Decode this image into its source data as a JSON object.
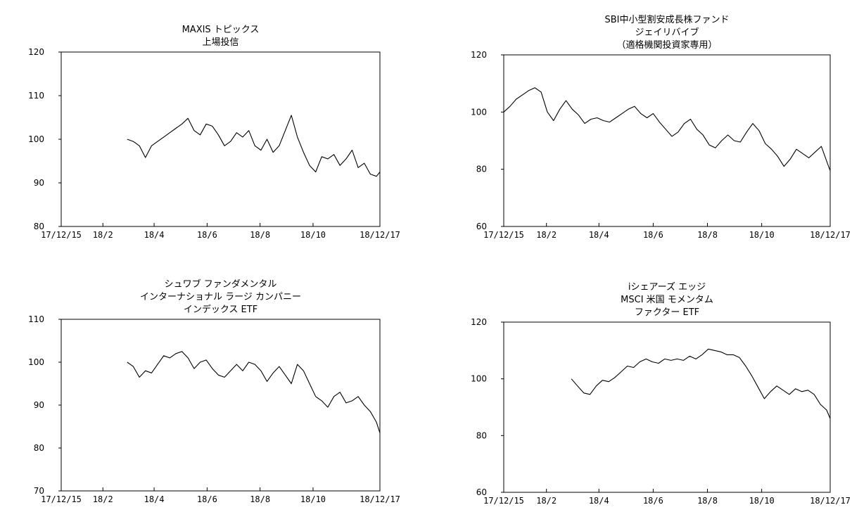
{
  "chart_data": [
    {
      "type": "line",
      "title_lines": [
        "MAXIS トピックス",
        "上場投信"
      ],
      "ylim": [
        80,
        120
      ],
      "yticks": [
        "80",
        "90",
        "100",
        "110",
        "120"
      ],
      "xticks": [
        "17/12/15",
        "18/2",
        "18/4",
        "18/6",
        "18/8",
        "18/10",
        "18/12/17"
      ],
      "x": [
        "18/3/1",
        "18/3/8",
        "18/3/15",
        "18/3/22",
        "18/3/29",
        "18/4/5",
        "18/4/12",
        "18/4/19",
        "18/4/26",
        "18/5/3",
        "18/5/10",
        "18/5/17",
        "18/5/24",
        "18/5/31",
        "18/6/7",
        "18/6/14",
        "18/6/21",
        "18/6/28",
        "18/7/5",
        "18/7/12",
        "18/7/19",
        "18/7/26",
        "18/8/2",
        "18/8/9",
        "18/8/16",
        "18/8/23",
        "18/8/30",
        "18/9/6",
        "18/9/13",
        "18/9/20",
        "18/9/27",
        "18/10/4",
        "18/10/11",
        "18/10/18",
        "18/10/25",
        "18/11/1",
        "18/11/8",
        "18/11/15",
        "18/11/22",
        "18/11/29",
        "18/12/6",
        "18/12/13",
        "18/12/17"
      ],
      "series": [
        {
          "values": [
            100,
            99.5,
            98.5,
            95.8,
            98.5,
            99.5,
            100.5,
            101.5,
            102.5,
            103.5,
            104.8,
            102,
            101,
            103.5,
            103,
            101,
            98.5,
            99.5,
            101.5,
            100.5,
            102,
            98.5,
            97.5,
            100,
            97,
            98.5,
            102,
            105.5,
            100.5,
            97,
            94,
            92.5,
            96,
            95.5,
            96.5,
            94,
            95.5,
            97.5,
            93.5,
            94.5,
            92,
            91.5,
            92.5
          ]
        }
      ]
    },
    {
      "type": "line",
      "title_lines": [
        "SBI中小型割安成長株ファンド",
        "ジェイリバイブ",
        "（適格機関投資家専用）"
      ],
      "ylim": [
        60,
        120
      ],
      "yticks": [
        "60",
        "80",
        "100",
        "120"
      ],
      "xticks": [
        "17/12/15",
        "18/2",
        "18/4",
        "18/6",
        "18/8",
        "18/10",
        "18/12/17"
      ],
      "x": [
        "17/12/15",
        "17/12/22",
        "17/12/29",
        "18/1/5",
        "18/1/12",
        "18/1/19",
        "18/1/26",
        "18/2/2",
        "18/2/9",
        "18/2/16",
        "18/2/23",
        "18/3/2",
        "18/3/9",
        "18/3/16",
        "18/3/23",
        "18/3/30",
        "18/4/6",
        "18/4/13",
        "18/4/20",
        "18/4/27",
        "18/5/4",
        "18/5/11",
        "18/5/18",
        "18/5/25",
        "18/6/1",
        "18/6/8",
        "18/6/15",
        "18/6/22",
        "18/6/29",
        "18/7/6",
        "18/7/13",
        "18/7/20",
        "18/7/27",
        "18/8/3",
        "18/8/10",
        "18/8/17",
        "18/8/24",
        "18/8/31",
        "18/9/7",
        "18/9/14",
        "18/9/21",
        "18/9/28",
        "18/10/5",
        "18/10/12",
        "18/10/19",
        "18/10/26",
        "18/11/2",
        "18/11/9",
        "18/11/16",
        "18/11/23",
        "18/11/30",
        "18/12/7",
        "18/12/14",
        "18/12/17"
      ],
      "series": [
        {
          "values": [
            100,
            102,
            104.5,
            106,
            107.5,
            108.5,
            107,
            100,
            97,
            101,
            104,
            101,
            99,
            96,
            97.5,
            98,
            97,
            96.5,
            98,
            99.5,
            101,
            102,
            99.5,
            98,
            99.5,
            96.5,
            94,
            91.5,
            93,
            96,
            97.5,
            94,
            92,
            88.5,
            87.5,
            90,
            92,
            90,
            89.5,
            93,
            96,
            93.5,
            89,
            87,
            84.5,
            81,
            83.5,
            87,
            85.5,
            84,
            86,
            88,
            82,
            79.5
          ]
        }
      ]
    },
    {
      "type": "line",
      "title_lines": [
        "シュワブ ファンダメンタル",
        "インターナショナル ラージ カンパニー",
        "インデックス ETF"
      ],
      "ylim": [
        70,
        110
      ],
      "yticks": [
        "70",
        "80",
        "90",
        "100",
        "110"
      ],
      "xticks": [
        "17/12/15",
        "18/2",
        "18/4",
        "18/6",
        "18/8",
        "18/10",
        "18/12/17"
      ],
      "x": [
        "18/3/1",
        "18/3/8",
        "18/3/15",
        "18/3/22",
        "18/3/29",
        "18/4/5",
        "18/4/12",
        "18/4/19",
        "18/4/26",
        "18/5/3",
        "18/5/10",
        "18/5/17",
        "18/5/24",
        "18/5/31",
        "18/6/7",
        "18/6/14",
        "18/6/21",
        "18/6/28",
        "18/7/5",
        "18/7/12",
        "18/7/19",
        "18/7/26",
        "18/8/2",
        "18/8/9",
        "18/8/16",
        "18/8/23",
        "18/8/30",
        "18/9/6",
        "18/9/13",
        "18/9/20",
        "18/9/27",
        "18/10/4",
        "18/10/11",
        "18/10/18",
        "18/10/25",
        "18/11/1",
        "18/11/8",
        "18/11/15",
        "18/11/22",
        "18/11/29",
        "18/12/6",
        "18/12/13",
        "18/12/17"
      ],
      "series": [
        {
          "values": [
            100,
            99,
            96.5,
            98,
            97.5,
            99.5,
            101.5,
            101,
            102,
            102.5,
            101,
            98.5,
            100,
            100.5,
            98.5,
            97,
            96.5,
            98,
            99.5,
            98,
            100,
            99.5,
            98,
            95.5,
            97.5,
            99,
            97,
            95,
            99.5,
            98,
            95,
            92,
            91,
            89.5,
            92,
            93,
            90.5,
            91,
            92,
            90,
            88.5,
            86,
            83.5
          ]
        }
      ]
    },
    {
      "type": "line",
      "title_lines": [
        "iシェアーズ エッジ",
        "MSCI 米国 モメンタム",
        "ファクター ETF"
      ],
      "ylim": [
        60,
        120
      ],
      "yticks": [
        "60",
        "80",
        "100",
        "120"
      ],
      "xticks": [
        "17/12/15",
        "18/2",
        "18/4",
        "18/6",
        "18/8",
        "18/10",
        "18/12/17"
      ],
      "x": [
        "18/3/1",
        "18/3/8",
        "18/3/15",
        "18/3/22",
        "18/3/29",
        "18/4/5",
        "18/4/12",
        "18/4/19",
        "18/4/26",
        "18/5/3",
        "18/5/10",
        "18/5/17",
        "18/5/24",
        "18/5/31",
        "18/6/7",
        "18/6/14",
        "18/6/21",
        "18/6/28",
        "18/7/5",
        "18/7/12",
        "18/7/19",
        "18/7/26",
        "18/8/2",
        "18/8/9",
        "18/8/16",
        "18/8/23",
        "18/8/30",
        "18/9/6",
        "18/9/13",
        "18/9/20",
        "18/9/27",
        "18/10/4",
        "18/10/11",
        "18/10/18",
        "18/10/25",
        "18/11/1",
        "18/11/8",
        "18/11/15",
        "18/11/22",
        "18/11/29",
        "18/12/6",
        "18/12/13",
        "18/12/17"
      ],
      "series": [
        {
          "values": [
            100,
            97.5,
            95,
            94.5,
            97.5,
            99.5,
            99,
            100.5,
            102.5,
            104.5,
            104,
            106,
            107,
            106,
            105.5,
            107,
            106.5,
            107,
            106.5,
            108,
            107,
            108.5,
            110.5,
            110,
            109.5,
            108.5,
            108.5,
            107.5,
            104.5,
            101,
            97,
            93,
            95.5,
            97.5,
            96,
            94.5,
            96.5,
            95.5,
            96,
            94.5,
            91,
            89,
            86
          ]
        }
      ]
    }
  ]
}
